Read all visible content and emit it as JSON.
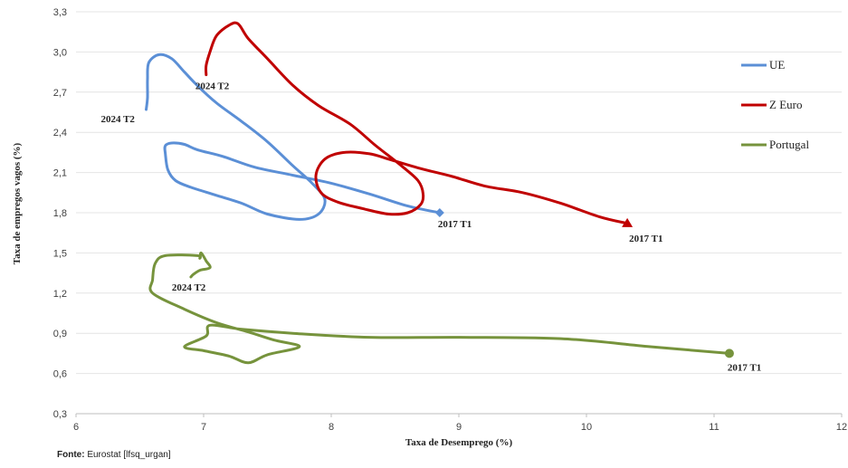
{
  "chart_data": {
    "type": "line",
    "xlabel": "Taxa de Desemprego (%)",
    "ylabel": "Taxa de empregos vagos (%)",
    "xlim": [
      6,
      12
    ],
    "ylim": [
      0.3,
      3.3
    ],
    "xticks": [
      "6",
      "7",
      "8",
      "9",
      "10",
      "11",
      "12"
    ],
    "yticks": [
      "0,3",
      "0,6",
      "0,9",
      "1,2",
      "1,5",
      "1,8",
      "2,1",
      "2,4",
      "2,7",
      "3,0",
      "3,3"
    ],
    "grid": "horizontal",
    "legend_position": "right",
    "series": [
      {
        "name": "UE",
        "color": "#5b8fd6",
        "marker": "diamond",
        "points": [
          [
            8.85,
            1.8
          ],
          [
            8.6,
            1.85
          ],
          [
            8.3,
            1.94
          ],
          [
            8.0,
            2.02
          ],
          [
            7.7,
            2.08
          ],
          [
            7.4,
            2.14
          ],
          [
            7.15,
            2.22
          ],
          [
            6.95,
            2.27
          ],
          [
            6.85,
            2.31
          ],
          [
            6.75,
            2.32
          ],
          [
            6.7,
            2.3
          ],
          [
            6.7,
            2.24
          ],
          [
            6.72,
            2.12
          ],
          [
            6.78,
            2.04
          ],
          [
            6.9,
            1.99
          ],
          [
            7.1,
            1.93
          ],
          [
            7.3,
            1.87
          ],
          [
            7.5,
            1.79
          ],
          [
            7.75,
            1.75
          ],
          [
            7.9,
            1.79
          ],
          [
            7.95,
            1.9
          ],
          [
            7.85,
            2.02
          ],
          [
            7.7,
            2.15
          ],
          [
            7.5,
            2.33
          ],
          [
            7.3,
            2.48
          ],
          [
            7.1,
            2.62
          ],
          [
            6.95,
            2.75
          ],
          [
            6.85,
            2.85
          ],
          [
            6.75,
            2.95
          ],
          [
            6.65,
            2.98
          ],
          [
            6.57,
            2.92
          ],
          [
            6.56,
            2.8
          ],
          [
            6.56,
            2.66
          ],
          [
            6.55,
            2.57
          ]
        ],
        "start_label": "2017 T1",
        "end_label": "2024 T2"
      },
      {
        "name": "Z Euro",
        "color": "#c00000",
        "marker": "triangle",
        "points": [
          [
            10.32,
            1.72
          ],
          [
            10.1,
            1.77
          ],
          [
            9.8,
            1.87
          ],
          [
            9.5,
            1.95
          ],
          [
            9.2,
            2.0
          ],
          [
            8.95,
            2.07
          ],
          [
            8.7,
            2.13
          ],
          [
            8.45,
            2.2
          ],
          [
            8.3,
            2.24
          ],
          [
            8.1,
            2.25
          ],
          [
            7.95,
            2.2
          ],
          [
            7.88,
            2.08
          ],
          [
            7.92,
            1.95
          ],
          [
            8.05,
            1.88
          ],
          [
            8.25,
            1.83
          ],
          [
            8.45,
            1.79
          ],
          [
            8.6,
            1.8
          ],
          [
            8.7,
            1.86
          ],
          [
            8.72,
            1.94
          ],
          [
            8.68,
            2.04
          ],
          [
            8.55,
            2.15
          ],
          [
            8.35,
            2.3
          ],
          [
            8.15,
            2.46
          ],
          [
            7.9,
            2.6
          ],
          [
            7.7,
            2.75
          ],
          [
            7.5,
            2.95
          ],
          [
            7.35,
            3.1
          ],
          [
            7.27,
            3.21
          ],
          [
            7.2,
            3.2
          ],
          [
            7.1,
            3.12
          ],
          [
            7.05,
            3.0
          ],
          [
            7.02,
            2.9
          ],
          [
            7.02,
            2.83
          ]
        ],
        "start_label": "2017 T1",
        "end_label": "2024 T2"
      },
      {
        "name": "Portugal",
        "color": "#76933c",
        "marker": "circle",
        "points": [
          [
            11.12,
            0.75
          ],
          [
            10.5,
            0.8
          ],
          [
            9.8,
            0.86
          ],
          [
            9.0,
            0.87
          ],
          [
            8.3,
            0.87
          ],
          [
            7.7,
            0.9
          ],
          [
            7.3,
            0.93
          ],
          [
            7.05,
            0.96
          ],
          [
            7.02,
            0.88
          ],
          [
            6.85,
            0.8
          ],
          [
            7.0,
            0.77
          ],
          [
            7.2,
            0.73
          ],
          [
            7.35,
            0.68
          ],
          [
            7.5,
            0.74
          ],
          [
            7.75,
            0.8
          ],
          [
            7.55,
            0.85
          ],
          [
            7.35,
            0.91
          ],
          [
            7.1,
            0.98
          ],
          [
            6.85,
            1.08
          ],
          [
            6.6,
            1.2
          ],
          [
            6.6,
            1.3
          ],
          [
            6.62,
            1.42
          ],
          [
            6.7,
            1.48
          ],
          [
            6.95,
            1.48
          ],
          [
            6.97,
            1.46
          ],
          [
            6.98,
            1.5
          ],
          [
            7.02,
            1.44
          ],
          [
            7.05,
            1.39
          ],
          [
            6.97,
            1.37
          ],
          [
            6.92,
            1.34
          ],
          [
            6.9,
            1.32
          ]
        ],
        "start_label": "2017 T1",
        "end_label": "2024 T2"
      }
    ]
  },
  "source": {
    "prefix": "Fonte:",
    "text": " Eurostat [lfsq_urgan]"
  }
}
